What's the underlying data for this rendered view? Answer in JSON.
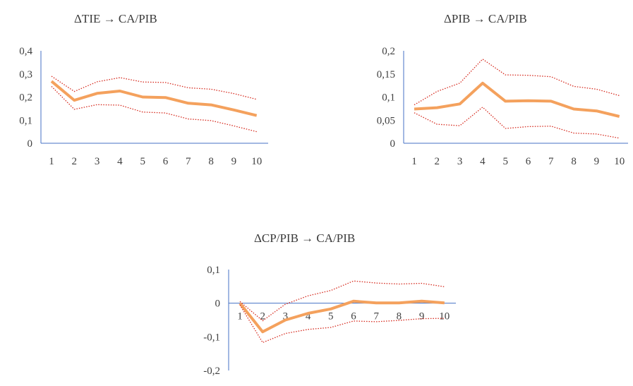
{
  "colors": {
    "axis": "#4472C4",
    "irf": "#F4A15D",
    "band": "#D62A1E",
    "text": "#404040"
  },
  "chart_data": [
    {
      "type": "line",
      "title": "ΔTIE → CA/PIB",
      "x": [
        1,
        2,
        3,
        4,
        5,
        6,
        7,
        8,
        9,
        10
      ],
      "x_labels": [
        "1",
        "2",
        "3",
        "4",
        "5",
        "6",
        "7",
        "8",
        "9",
        "10"
      ],
      "ylim": [
        0,
        0.4
      ],
      "y_ticks": [
        0,
        0.1,
        0.2,
        0.3,
        0.4
      ],
      "y_tick_labels": [
        "0",
        "0,1",
        "0,2",
        "0,3",
        "0,4"
      ],
      "series": [
        {
          "role": "irf",
          "values": [
            0.268,
            0.186,
            0.216,
            0.226,
            0.2,
            0.198,
            0.173,
            0.166,
            0.144,
            0.12
          ]
        },
        {
          "role": "upper",
          "values": [
            0.29,
            0.224,
            0.266,
            0.284,
            0.265,
            0.263,
            0.24,
            0.234,
            0.215,
            0.19
          ]
        },
        {
          "role": "lower",
          "values": [
            0.246,
            0.147,
            0.167,
            0.165,
            0.135,
            0.131,
            0.105,
            0.098,
            0.075,
            0.05
          ]
        }
      ]
    },
    {
      "type": "line",
      "title": "ΔPIB → CA/PIB",
      "x": [
        1,
        2,
        3,
        4,
        5,
        6,
        7,
        8,
        9,
        10
      ],
      "x_labels": [
        "1",
        "2",
        "3",
        "4",
        "5",
        "6",
        "7",
        "8",
        "9",
        "10"
      ],
      "ylim": [
        0,
        0.2
      ],
      "y_ticks": [
        0,
        0.05,
        0.1,
        0.15,
        0.2
      ],
      "y_tick_labels": [
        "0",
        "0,05",
        "0,1",
        "0,15",
        "0,2"
      ],
      "series": [
        {
          "role": "irf",
          "values": [
            0.074,
            0.077,
            0.085,
            0.13,
            0.091,
            0.092,
            0.091,
            0.074,
            0.07,
            0.058
          ]
        },
        {
          "role": "upper",
          "values": [
            0.083,
            0.112,
            0.13,
            0.182,
            0.148,
            0.147,
            0.144,
            0.123,
            0.117,
            0.103
          ]
        },
        {
          "role": "lower",
          "values": [
            0.066,
            0.041,
            0.038,
            0.078,
            0.032,
            0.036,
            0.037,
            0.022,
            0.02,
            0.011
          ]
        }
      ]
    },
    {
      "type": "line",
      "title": "ΔCP/PIB → CA/PIB",
      "x": [
        1,
        2,
        3,
        4,
        5,
        6,
        7,
        8,
        9,
        10
      ],
      "x_labels": [
        "1",
        "2",
        "3",
        "4",
        "5",
        "6",
        "7",
        "8",
        "9",
        "10"
      ],
      "ylim": [
        -0.2,
        0.1
      ],
      "y_ticks": [
        -0.2,
        -0.1,
        0,
        0.1
      ],
      "y_tick_labels": [
        "-0,2",
        "-0,1",
        "0",
        "0,1"
      ],
      "series": [
        {
          "role": "irf",
          "values": [
            0.0,
            -0.085,
            -0.05,
            -0.03,
            -0.017,
            0.006,
            0.001,
            0.001,
            0.006,
            0.001
          ]
        },
        {
          "role": "upper",
          "values": [
            0.005,
            -0.052,
            -0.003,
            0.022,
            0.038,
            0.066,
            0.06,
            0.057,
            0.059,
            0.049
          ]
        },
        {
          "role": "lower",
          "values": [
            -0.005,
            -0.117,
            -0.09,
            -0.078,
            -0.072,
            -0.053,
            -0.055,
            -0.051,
            -0.046,
            -0.045
          ]
        }
      ]
    }
  ]
}
